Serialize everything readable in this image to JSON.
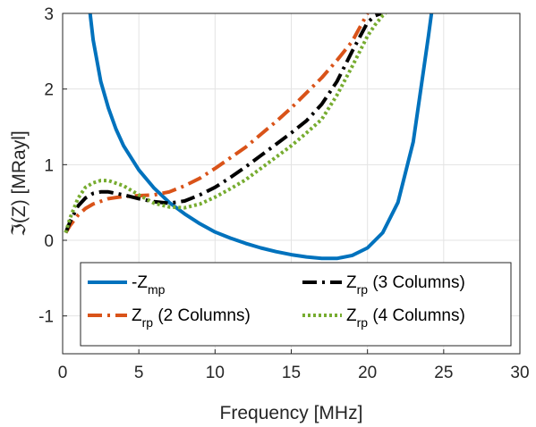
{
  "chart_data": {
    "type": "line",
    "xlabel": "Frequency [MHz]",
    "ylabel": "ℑ(Z) [MRayl]",
    "xlim": [
      0,
      30
    ],
    "ylim": [
      -1.5,
      3
    ],
    "xticks": [
      "0",
      "5",
      "10",
      "15",
      "20",
      "25",
      "30"
    ],
    "yticks": [
      "-1",
      "0",
      "1",
      "2",
      "3"
    ],
    "grid": true,
    "legend_placement": "bottom",
    "series": [
      {
        "name": "-Z",
        "name_sub": "mp",
        "color": "#0072BD",
        "style": "solid",
        "x": [
          1.8,
          2,
          2.5,
          3,
          3.5,
          4,
          5,
          6,
          7,
          8,
          9,
          10,
          11,
          12,
          13,
          14,
          15,
          16,
          17,
          18,
          19,
          20,
          21,
          22,
          23,
          23.5,
          24,
          24.2
        ],
        "y": [
          3.0,
          2.65,
          2.1,
          1.75,
          1.47,
          1.25,
          0.93,
          0.69,
          0.5,
          0.35,
          0.22,
          0.11,
          0.03,
          -0.04,
          -0.1,
          -0.15,
          -0.19,
          -0.22,
          -0.24,
          -0.24,
          -0.2,
          -0.1,
          0.1,
          0.5,
          1.3,
          2.0,
          2.7,
          3.0
        ]
      },
      {
        "name": "Z",
        "name_sub": "rp",
        "name_rest": " (2 Columns)",
        "color": "#D95319",
        "style": "dashdot",
        "x": [
          0.2,
          0.5,
          1,
          1.5,
          2,
          3,
          4,
          5,
          6,
          7,
          8,
          9,
          10,
          11,
          12,
          13,
          14,
          15,
          16,
          17,
          18,
          19,
          20
        ],
        "y": [
          0.1,
          0.2,
          0.33,
          0.42,
          0.48,
          0.55,
          0.58,
          0.59,
          0.6,
          0.64,
          0.72,
          0.82,
          0.95,
          1.09,
          1.23,
          1.4,
          1.57,
          1.75,
          1.95,
          2.15,
          2.38,
          2.63,
          3.0
        ]
      },
      {
        "name": "Z",
        "name_sub": "rp",
        "name_rest": " (3 Columns)",
        "color": "#000000",
        "style": "dashdot",
        "x": [
          0.2,
          0.5,
          1,
          1.5,
          2,
          2.5,
          3,
          4,
          5,
          6,
          7,
          8,
          9,
          10,
          11,
          12,
          13,
          14,
          15,
          16,
          17,
          18,
          19,
          20,
          20.5,
          20.9
        ],
        "y": [
          0.1,
          0.25,
          0.45,
          0.56,
          0.62,
          0.64,
          0.64,
          0.6,
          0.55,
          0.51,
          0.49,
          0.52,
          0.6,
          0.7,
          0.83,
          0.97,
          1.12,
          1.27,
          1.42,
          1.58,
          1.8,
          2.1,
          2.5,
          2.88,
          2.97,
          3.0
        ]
      },
      {
        "name": "Z",
        "name_sub": "rp",
        "name_rest": " (4 Columns)",
        "color": "#77AC30",
        "style": "dotted",
        "x": [
          0.2,
          0.5,
          1,
          1.5,
          2,
          2.5,
          3,
          4,
          5,
          6,
          7,
          8,
          9,
          10,
          11,
          12,
          13,
          14,
          15,
          16,
          17,
          18,
          19,
          20,
          20.5,
          21,
          21.2
        ],
        "y": [
          0.1,
          0.3,
          0.55,
          0.7,
          0.76,
          0.79,
          0.79,
          0.72,
          0.6,
          0.49,
          0.44,
          0.43,
          0.48,
          0.57,
          0.68,
          0.8,
          0.95,
          1.1,
          1.25,
          1.42,
          1.6,
          1.92,
          2.3,
          2.7,
          2.85,
          2.97,
          3.0
        ]
      }
    ]
  }
}
